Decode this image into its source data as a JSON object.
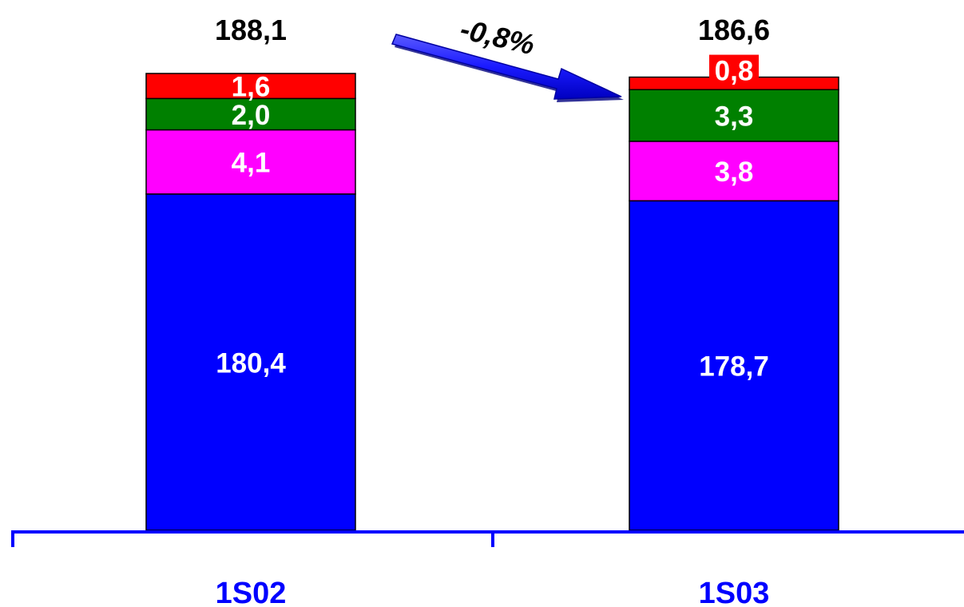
{
  "chart_data": {
    "type": "bar",
    "stacked": true,
    "categories": [
      "1S02",
      "1S03"
    ],
    "series": [
      {
        "values": [
          180.4,
          178.7
        ],
        "labels": [
          "180,4",
          "178,7"
        ],
        "color": "#0000ff",
        "label_color": "#ffffff"
      },
      {
        "values": [
          4.1,
          3.8
        ],
        "labels": [
          "4,1",
          "3,8"
        ],
        "color": "#ff00ff",
        "label_color": "#ffffff"
      },
      {
        "values": [
          2.0,
          3.3
        ],
        "labels": [
          "2,0",
          "3,3"
        ],
        "color": "#008000",
        "label_color": "#ffffff"
      },
      {
        "values": [
          1.6,
          0.8
        ],
        "labels": [
          "1,6",
          "0,8"
        ],
        "color": "#ff0000",
        "label_color": "#ffffff"
      }
    ],
    "totals": [
      188.1,
      186.6
    ],
    "total_labels": [
      "188,1",
      "186,6"
    ],
    "annotation": {
      "text": "-0,8%",
      "arrow_color": "#1a1aff"
    },
    "axis_color": "#0000ff",
    "category_label_color": "#0000ff",
    "grid": false,
    "title": "",
    "xlabel": "",
    "ylabel": ""
  }
}
